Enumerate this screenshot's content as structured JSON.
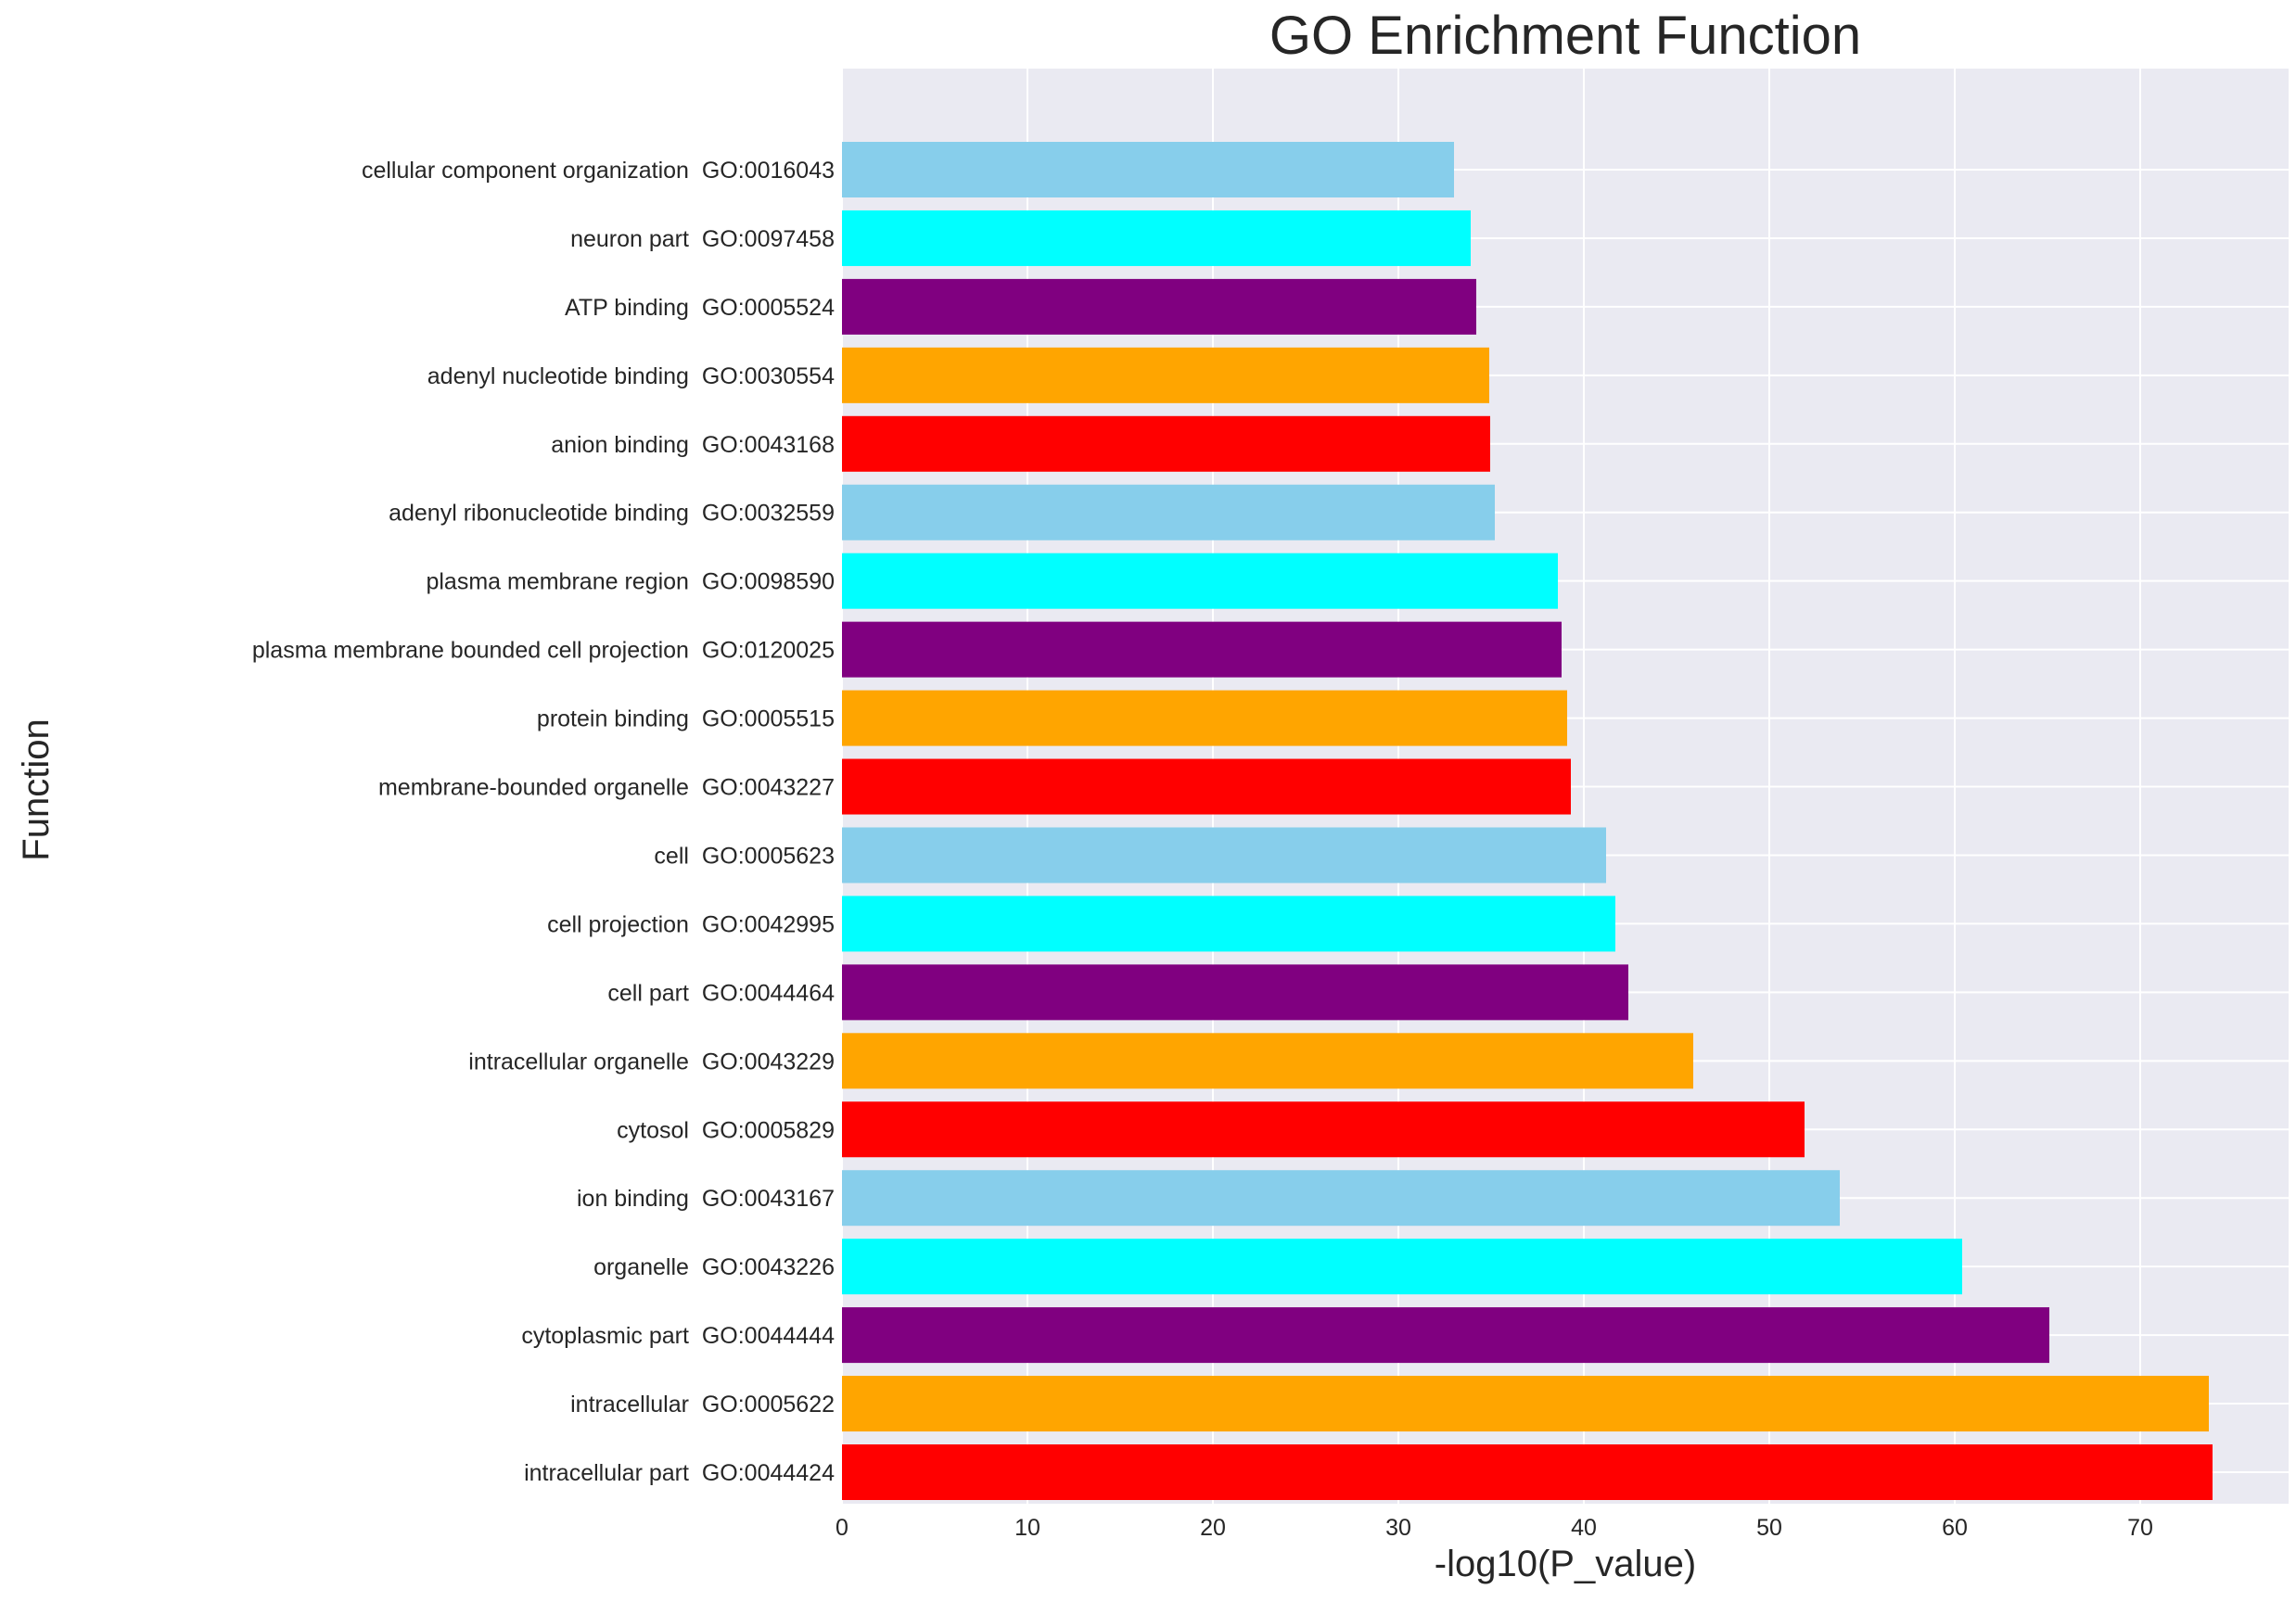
{
  "chart_data": {
    "type": "bar",
    "orientation": "horizontal",
    "title": "GO Enrichment Function",
    "xlabel": "-log10(P_value)",
    "ylabel": "Function",
    "xlim": [
      0,
      78
    ],
    "xticks": [
      0,
      10,
      20,
      30,
      40,
      50,
      60,
      70
    ],
    "grid": true,
    "background": "#eaeaf2",
    "grid_color": "#ffffff",
    "categories": [
      "cellular component organization  GO:0016043",
      "neuron part  GO:0097458",
      "ATP binding  GO:0005524",
      "adenyl nucleotide binding  GO:0030554",
      "anion binding  GO:0043168",
      "adenyl ribonucleotide binding  GO:0032559",
      "plasma membrane region  GO:0098590",
      "plasma membrane bounded cell projection  GO:0120025",
      "protein binding  GO:0005515",
      "membrane-bounded organelle  GO:0043227",
      "cell  GO:0005623",
      "cell projection  GO:0042995",
      "cell part  GO:0044464",
      "intracellular organelle  GO:0043229",
      "cytosol  GO:0005829",
      "ion binding  GO:0043167",
      "organelle  GO:0043226",
      "cytoplasmic part  GO:0044444",
      "intracellular  GO:0005622",
      "intracellular part  GO:0044424"
    ],
    "values": [
      33.0,
      33.9,
      34.2,
      34.9,
      34.95,
      35.2,
      38.6,
      38.8,
      39.1,
      39.3,
      41.2,
      41.7,
      42.4,
      45.9,
      51.9,
      53.8,
      60.4,
      65.1,
      73.7,
      73.9
    ],
    "colors": [
      "#87ceeb",
      "#00ffff",
      "#800080",
      "#ffa500",
      "#ff0000",
      "#87ceeb",
      "#00ffff",
      "#800080",
      "#ffa500",
      "#ff0000",
      "#87ceeb",
      "#00ffff",
      "#800080",
      "#ffa500",
      "#ff0000",
      "#87ceeb",
      "#00ffff",
      "#800080",
      "#ffa500",
      "#ff0000"
    ]
  }
}
